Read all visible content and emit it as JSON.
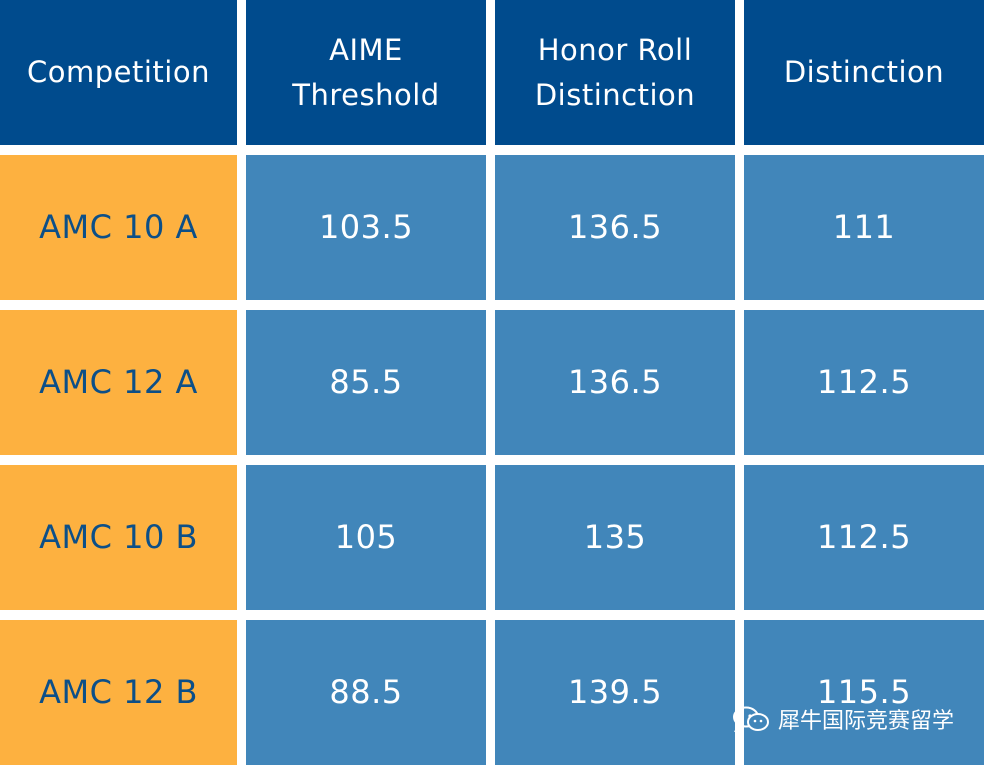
{
  "table": {
    "headers": [
      "Competition",
      "AIME Threshold",
      "Honor Roll Distinction",
      "Distinction"
    ],
    "rows": [
      {
        "competition": "AMC 10 A",
        "aime": "103.5",
        "honor": "136.5",
        "distinction": "111"
      },
      {
        "competition": "AMC 12 A",
        "aime": "85.5",
        "honor": "136.5",
        "distinction": "112.5"
      },
      {
        "competition": "AMC 10 B",
        "aime": "105",
        "honor": "135",
        "distinction": "112.5"
      },
      {
        "competition": "AMC 12 B",
        "aime": "88.5",
        "honor": "139.5",
        "distinction": "115.5"
      }
    ]
  },
  "watermark": {
    "text": "犀牛国际竞赛留学",
    "icon": "wechat-icon"
  },
  "colors": {
    "header_bg": "#004b8d",
    "competition_bg": "#fdb140",
    "value_bg": "#4186ba",
    "competition_text": "#0c4f88"
  }
}
